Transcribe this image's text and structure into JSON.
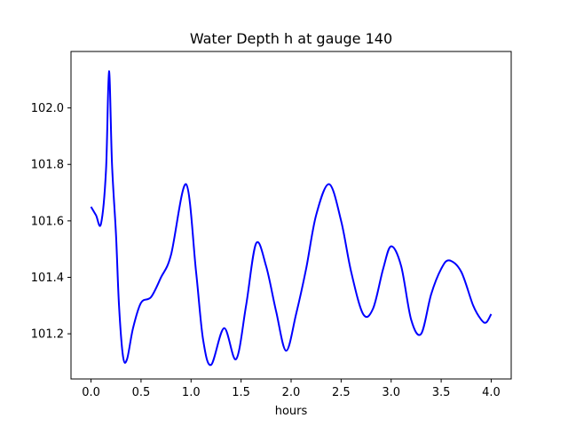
{
  "chart_data": {
    "type": "line",
    "title": "Water Depth h at gauge 140",
    "xlabel": "hours",
    "ylabel": "",
    "xlim": [
      -0.2,
      4.2
    ],
    "ylim": [
      101.04,
      102.2
    ],
    "grid": false,
    "x_ticks": [
      0.0,
      0.5,
      1.0,
      1.5,
      2.0,
      2.5,
      3.0,
      3.5,
      4.0
    ],
    "x_tick_labels": [
      "0.0",
      "0.5",
      "1.0",
      "1.5",
      "2.0",
      "2.5",
      "3.0",
      "3.5",
      "4.0"
    ],
    "y_ticks": [
      101.2,
      101.4,
      101.6,
      101.8,
      102.0
    ],
    "y_tick_labels": [
      "101.2",
      "101.4",
      "101.6",
      "101.8",
      "102.0"
    ],
    "series": [
      {
        "color": "#0000ff",
        "x": [
          0.0,
          0.05,
          0.1,
          0.15,
          0.18,
          0.21,
          0.25,
          0.28,
          0.32,
          0.36,
          0.42,
          0.5,
          0.6,
          0.7,
          0.8,
          0.95,
          1.05,
          1.12,
          1.2,
          1.33,
          1.45,
          1.55,
          1.65,
          1.75,
          1.85,
          1.95,
          2.05,
          2.15,
          2.25,
          2.38,
          2.5,
          2.6,
          2.72,
          2.82,
          2.92,
          3.0,
          3.1,
          3.2,
          3.3,
          3.4,
          3.5,
          3.58,
          3.7,
          3.82,
          3.9,
          3.95,
          4.0
        ],
        "y": [
          101.65,
          101.62,
          101.59,
          101.78,
          102.13,
          101.8,
          101.55,
          101.3,
          101.12,
          101.11,
          101.22,
          101.31,
          101.33,
          101.4,
          101.48,
          101.73,
          101.42,
          101.18,
          101.09,
          101.22,
          101.11,
          101.3,
          101.52,
          101.44,
          101.28,
          101.14,
          101.27,
          101.43,
          101.62,
          101.73,
          101.6,
          101.42,
          101.27,
          101.29,
          101.43,
          101.51,
          101.44,
          101.25,
          101.2,
          101.34,
          101.43,
          101.46,
          101.42,
          101.3,
          101.25,
          101.24,
          101.27
        ]
      }
    ]
  }
}
